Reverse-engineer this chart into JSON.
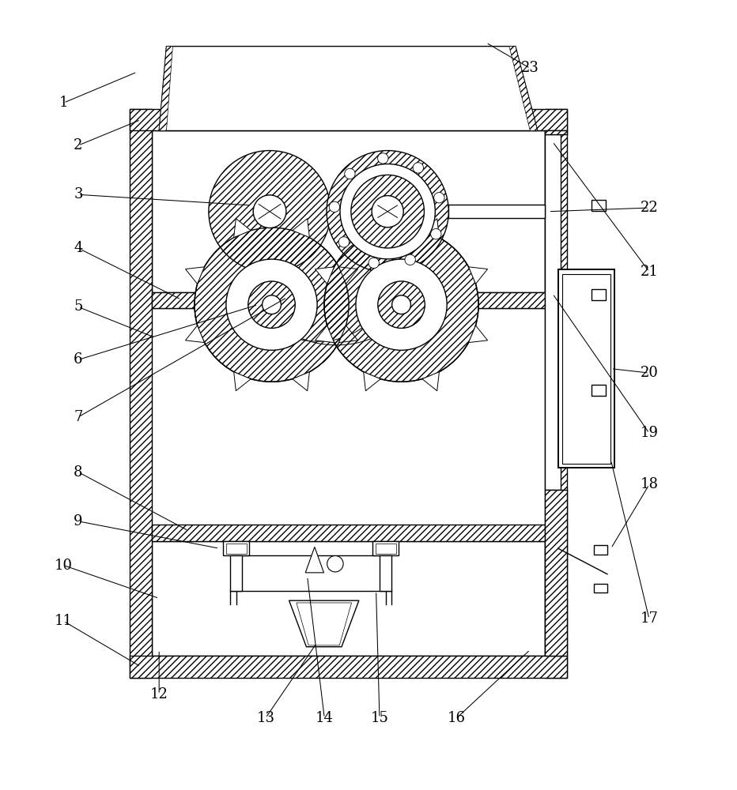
{
  "background_color": "#ffffff",
  "line_color": "#000000",
  "fig_width": 9.32,
  "fig_height": 10.0,
  "dpi": 100,
  "mx": 0.175,
  "my": 0.115,
  "mw": 0.595,
  "mh": 0.775,
  "wt": 0.03
}
